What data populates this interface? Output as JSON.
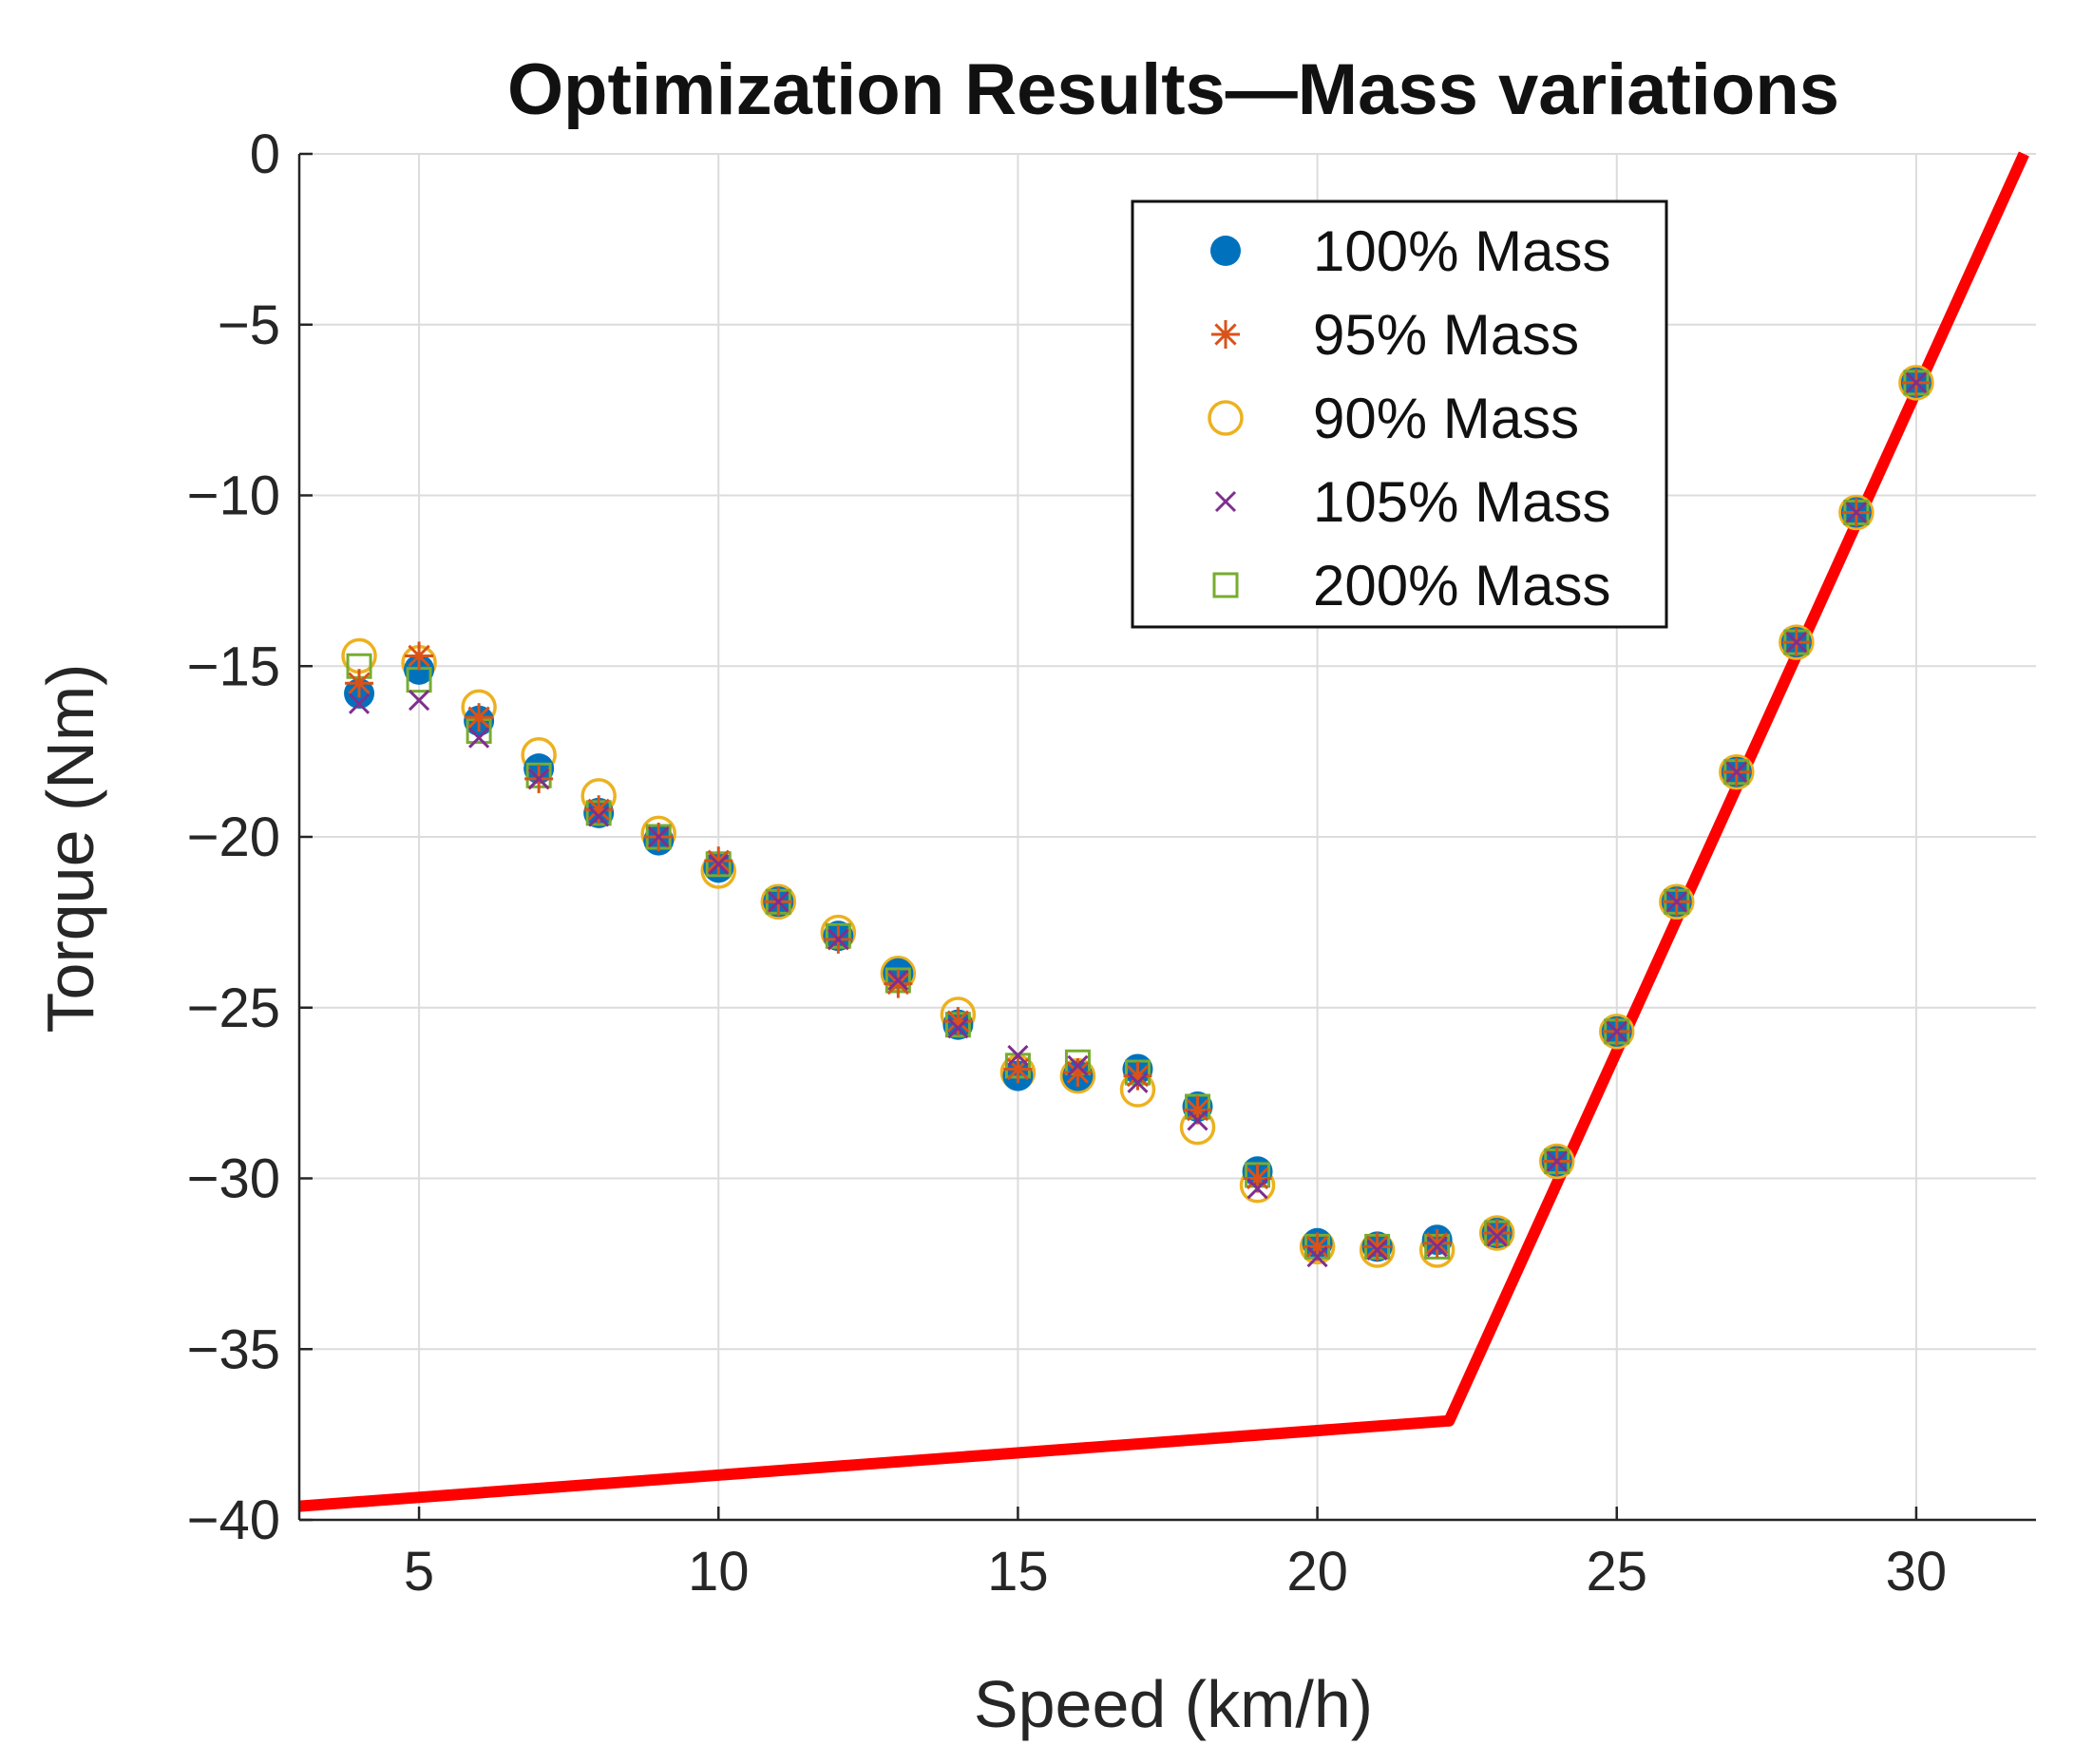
{
  "chart_data": {
    "type": "scatter",
    "title": "Optimization Results—Mass variations",
    "xlabel": "Speed (km/h)",
    "ylabel": "Torque (Nm)",
    "xlim": [
      3,
      32
    ],
    "ylim": [
      -40,
      0
    ],
    "xticks": [
      5,
      10,
      15,
      20,
      25,
      30
    ],
    "xtick_labels": [
      "5",
      "10",
      "15",
      "20",
      "25",
      "30"
    ],
    "yticks": [
      0,
      -5,
      -10,
      -15,
      -20,
      -25,
      -30,
      -35,
      -40
    ],
    "ytick_labels": [
      "0",
      "−5",
      "−10",
      "−15",
      "−20",
      "−25",
      "−30",
      "−35",
      "−40"
    ],
    "grid": true,
    "legend_position": "top-right",
    "x": [
      4,
      5,
      6,
      7,
      8,
      9,
      10,
      11,
      12,
      13,
      14,
      15,
      16,
      17,
      18,
      19,
      20,
      21,
      22,
      23,
      24,
      25,
      26,
      27,
      28,
      29,
      30
    ],
    "series": [
      {
        "name": "100% Mass",
        "marker": "filled-circle",
        "color": "#0072BD",
        "values": [
          -15.8,
          -15.1,
          -16.6,
          -18.0,
          -19.3,
          -20.1,
          -20.9,
          -21.9,
          -22.9,
          -24.0,
          -25.5,
          -27.0,
          -27.0,
          -26.8,
          -27.9,
          -29.8,
          -31.9,
          -32.0,
          -31.8,
          -31.6,
          -29.5,
          -25.7,
          -21.9,
          -18.1,
          -14.3,
          -10.5,
          -6.7
        ]
      },
      {
        "name": "95% Mass",
        "marker": "asterisk",
        "color": "#D95319",
        "values": [
          -15.5,
          -14.7,
          -16.5,
          -18.3,
          -19.2,
          -20.0,
          -20.7,
          -21.9,
          -23.0,
          -24.3,
          -25.4,
          -26.8,
          -26.9,
          -27.0,
          -28.0,
          -30.0,
          -32.0,
          -32.0,
          -31.9,
          -31.6,
          -29.5,
          -25.7,
          -21.9,
          -18.1,
          -14.3,
          -10.5,
          -6.7
        ]
      },
      {
        "name": "90% Mass",
        "marker": "open-circle",
        "color": "#EDB120",
        "values": [
          -14.7,
          -14.9,
          -16.2,
          -17.6,
          -18.8,
          -19.9,
          -21.0,
          -21.9,
          -22.8,
          -24.0,
          -25.2,
          -26.9,
          -27.0,
          -27.4,
          -28.5,
          -30.2,
          -32.0,
          -32.1,
          -32.1,
          -31.6,
          -29.5,
          -25.7,
          -21.9,
          -18.1,
          -14.3,
          -10.5,
          -6.7
        ]
      },
      {
        "name": "105% Mass",
        "marker": "x",
        "color": "#7E2F8E",
        "values": [
          -16.1,
          -16.0,
          -17.1,
          -18.3,
          -19.4,
          -20.0,
          -20.8,
          -21.9,
          -23.0,
          -24.2,
          -25.6,
          -26.4,
          -26.7,
          -27.2,
          -28.3,
          -30.3,
          -32.3,
          -32.1,
          -32.0,
          -31.7,
          -29.5,
          -25.7,
          -21.9,
          -18.1,
          -14.3,
          -10.5,
          -6.7
        ]
      },
      {
        "name": "200% Mass",
        "marker": "open-square",
        "color": "#77AC30",
        "values": [
          -15.0,
          -15.4,
          -16.9,
          -18.2,
          -19.3,
          -20.0,
          -20.8,
          -21.9,
          -22.9,
          -24.2,
          -25.5,
          -26.7,
          -26.6,
          -26.9,
          -27.9,
          -29.9,
          -32.0,
          -32.0,
          -32.0,
          -31.6,
          -29.5,
          -25.7,
          -21.9,
          -18.1,
          -14.3,
          -10.5,
          -6.7
        ]
      }
    ],
    "limit_line": {
      "color": "#FF0000",
      "x": [
        3,
        22.2,
        31.8
      ],
      "y": [
        -39.6,
        -37.1,
        0
      ]
    }
  }
}
